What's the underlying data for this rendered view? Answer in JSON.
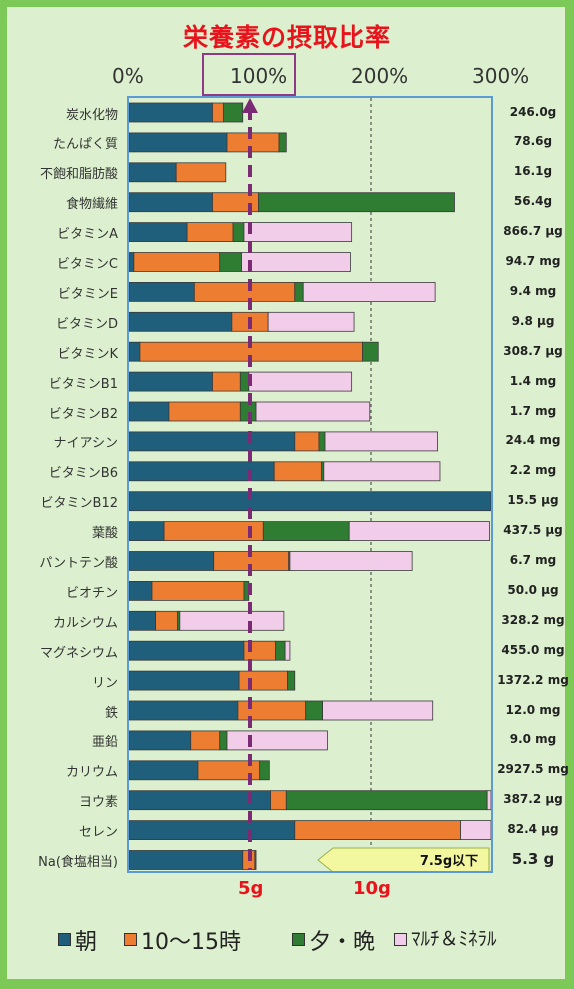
{
  "chart_data": {
    "type": "bar",
    "title": "栄養素の摂取比率",
    "x_tick_labels": [
      "0%",
      "100%",
      "200%",
      "300%"
    ],
    "xlim": [
      0,
      3
    ],
    "grid_lines": [
      1,
      2,
      3
    ],
    "colors": {
      "morning": "#1f5f7c",
      "midday": "#ed7d31",
      "evening": "#2e7d32",
      "multi": "#f2cdea",
      "reference": "#7b2b73"
    },
    "series": [
      {
        "name": "朝",
        "key": "morning"
      },
      {
        "name": "10～15時",
        "key": "midday"
      },
      {
        "name": "夕・晩",
        "key": "evening"
      },
      {
        "name": "ﾏﾙﾁ＆ﾐﾈﾗﾙ",
        "key": "multi"
      }
    ],
    "rows": [
      {
        "label": "炭水化物",
        "amount": "246.0g",
        "values": [
          0.69,
          0.09,
          0.16,
          0
        ]
      },
      {
        "label": "たんぱく質",
        "amount": "78.6g",
        "values": [
          0.81,
          0.43,
          0.06,
          0
        ]
      },
      {
        "label": "不飽和脂肪酸",
        "amount": "16.1g",
        "values": [
          0.39,
          0.41,
          0,
          0
        ]
      },
      {
        "label": "食物繊維",
        "amount": "56.4g",
        "values": [
          0.69,
          0.38,
          1.62,
          0
        ]
      },
      {
        "label": "ビタミンA",
        "amount": "866.7 μg",
        "values": [
          0.48,
          0.38,
          0.09,
          0.89
        ]
      },
      {
        "label": "ビタミンC",
        "amount": "94.7 mg",
        "values": [
          0.04,
          0.71,
          0.18,
          0.9
        ]
      },
      {
        "label": "ビタミンE",
        "amount": "9.4 mg",
        "values": [
          0.54,
          0.83,
          0.07,
          1.09
        ]
      },
      {
        "label": "ビタミンD",
        "amount": "9.8 μg",
        "values": [
          0.85,
          0.3,
          0,
          0.71
        ]
      },
      {
        "label": "ビタミンK",
        "amount": "308.7 μg",
        "values": [
          0.09,
          1.84,
          0.13,
          0
        ]
      },
      {
        "label": "ビタミンB1",
        "amount": "1.4 mg",
        "values": [
          0.69,
          0.23,
          0.07,
          0.85
        ]
      },
      {
        "label": "ビタミンB2",
        "amount": "1.7 mg",
        "values": [
          0.33,
          0.59,
          0.13,
          0.94
        ]
      },
      {
        "label": "ナイアシン",
        "amount": "24.4 mg",
        "values": [
          1.37,
          0.2,
          0.05,
          0.93
        ]
      },
      {
        "label": "ビタミンB6",
        "amount": "2.2 mg",
        "values": [
          1.2,
          0.39,
          0.02,
          0.96
        ]
      },
      {
        "label": "ビタミンB12",
        "amount": "15.5 μg",
        "values": [
          3.0,
          0,
          0,
          0
        ]
      },
      {
        "label": "葉酸",
        "amount": "437.5 μg",
        "values": [
          0.29,
          0.82,
          0.71,
          1.16
        ]
      },
      {
        "label": "パントテン酸",
        "amount": "6.7 mg",
        "values": [
          0.7,
          0.62,
          0.01,
          1.01
        ]
      },
      {
        "label": "ビオチン",
        "amount": "50.0 μg",
        "values": [
          0.19,
          0.76,
          0.04,
          0
        ]
      },
      {
        "label": "カルシウム",
        "amount": "328.2 mg",
        "values": [
          0.22,
          0.18,
          0.02,
          0.86
        ]
      },
      {
        "label": "マグネシウム",
        "amount": "455.0 mg",
        "values": [
          0.95,
          0.26,
          0.08,
          0.04
        ]
      },
      {
        "label": "リン",
        "amount": "1372.2 mg",
        "values": [
          0.91,
          0.4,
          0.06,
          0
        ]
      },
      {
        "label": "鉄",
        "amount": "12.0 mg",
        "values": [
          0.9,
          0.56,
          0.14,
          0.91
        ]
      },
      {
        "label": "亜鉛",
        "amount": "9.0 mg",
        "values": [
          0.51,
          0.24,
          0.06,
          0.83
        ]
      },
      {
        "label": "カリウム",
        "amount": "2927.5 mg",
        "values": [
          0.57,
          0.51,
          0.08,
          0
        ]
      },
      {
        "label": "ヨウ素",
        "amount": "387.2 μg",
        "values": [
          1.17,
          0.13,
          1.66,
          0.04
        ]
      },
      {
        "label": "セレン",
        "amount": "82.4 μg",
        "values": [
          1.37,
          1.37,
          0,
          0.26
        ]
      },
      {
        "label": "Na(食塩相当)",
        "amount": "5.3 g",
        "values": [
          0.94,
          0.1,
          0.01,
          0
        ]
      }
    ],
    "sodium_limit_note": "7.5g以下",
    "gram_scale_labels": [
      {
        "text": "5g",
        "value": 1
      },
      {
        "text": "10g",
        "value": 2
      }
    ]
  }
}
